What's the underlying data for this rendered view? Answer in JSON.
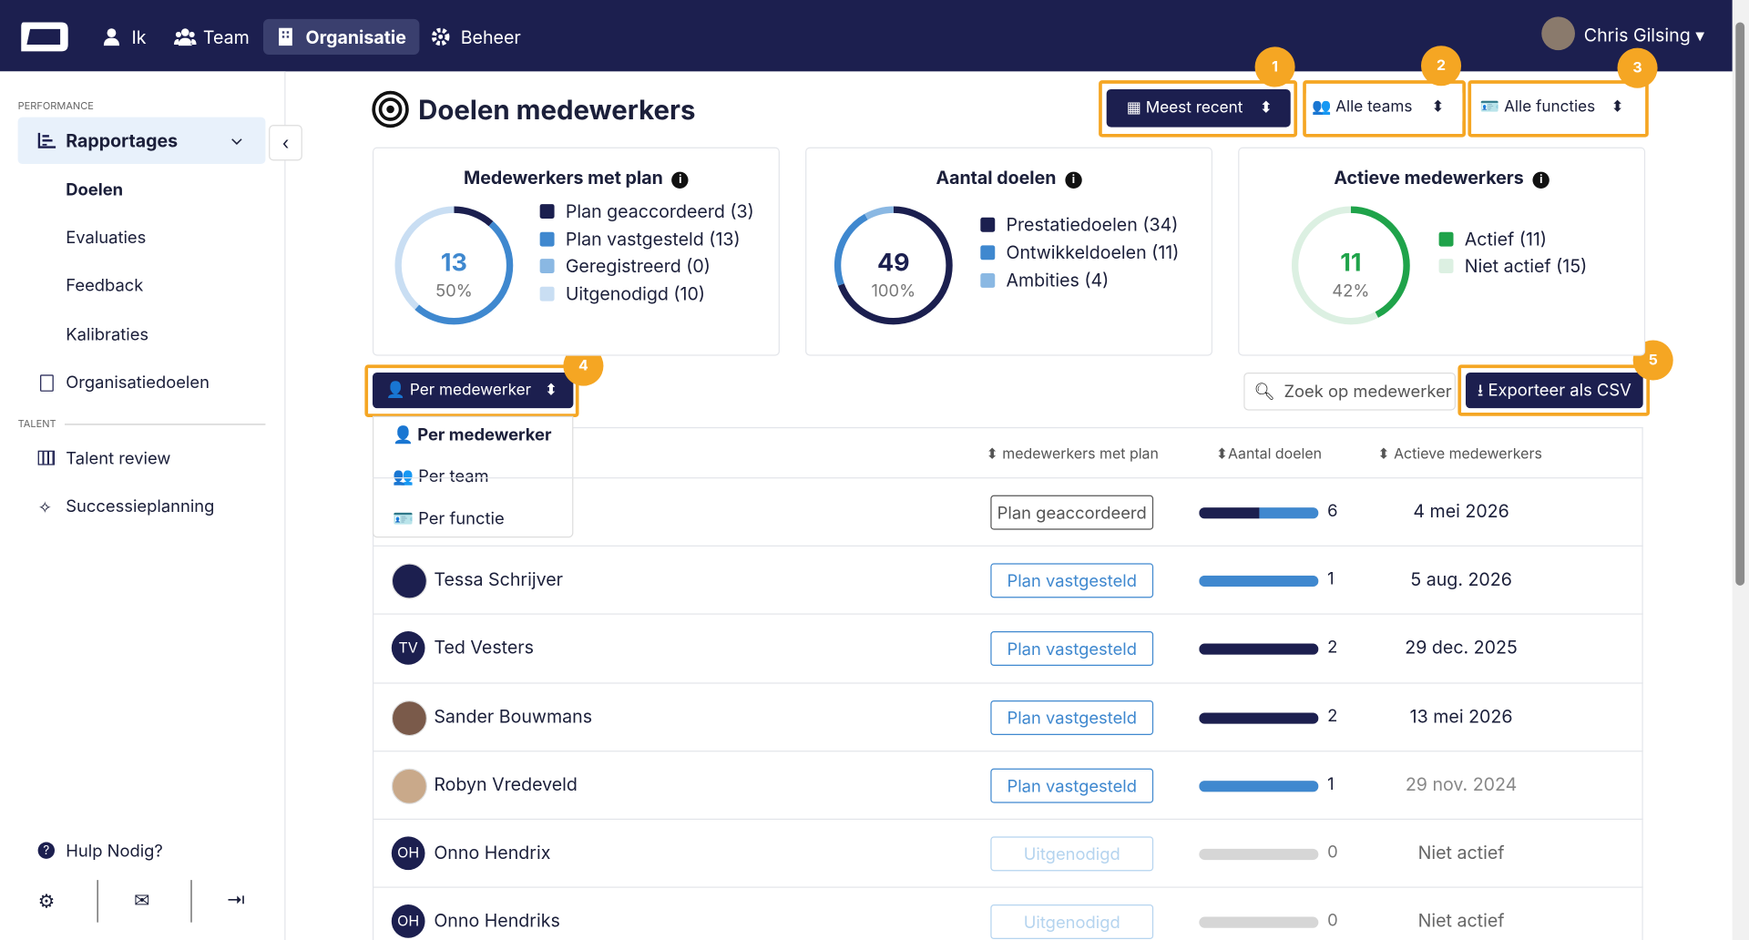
{
  "nav": {
    "items": [
      "Ik",
      "Team",
      "Organisatie",
      "Beheer"
    ],
    "user": "Chris Gilsing"
  },
  "sidebar": {
    "performance_label": "PERFORMANCE",
    "reports": "Rapportages",
    "report_items": [
      "Doelen",
      "Evaluaties",
      "Feedback",
      "Kalibraties"
    ],
    "org_goals": "Organisatiedoelen",
    "talent_label": "TALENT",
    "talent_items": [
      "Talent review",
      "Successieplanning"
    ],
    "help": "Hulp Nodig?"
  },
  "header": {
    "title": "Doelen medewerkers",
    "filters": [
      "Meest recent",
      "Alle teams",
      "Alle functies"
    ]
  },
  "badges": [
    1,
    2,
    3,
    4,
    5
  ],
  "cards": [
    {
      "title": "Medewerkers met plan",
      "value": 13,
      "percent": "50%",
      "legend": [
        {
          "label": "Plan geaccordeerd (3)",
          "value": 3,
          "color": "#1b1f4f"
        },
        {
          "label": "Plan vastgesteld (13)",
          "value": 13,
          "color": "#3f88cf"
        },
        {
          "label": "Geregistreerd (0)",
          "value": 0,
          "color": "#8ab8e3"
        },
        {
          "label": "Uitgenodigd (10)",
          "value": 10,
          "color": "#c9def3"
        }
      ]
    },
    {
      "title": "Aantal doelen",
      "value": 49,
      "percent": "100%",
      "legend": [
        {
          "label": "Prestatiedoelen (34)",
          "value": 34,
          "color": "#1b1f4f"
        },
        {
          "label": "Ontwikkeldoelen (11)",
          "value": 11,
          "color": "#3f88cf"
        },
        {
          "label": "Ambities (4)",
          "value": 4,
          "color": "#8ab8e3"
        }
      ]
    },
    {
      "title": "Actieve medewerkers",
      "value": 11,
      "percent": "42%",
      "legend": [
        {
          "label": "Actief (11)",
          "value": 11,
          "color": "#1fa34a"
        },
        {
          "label": "Niet actief (15)",
          "value": 15,
          "color": "#dcf0e2"
        }
      ]
    }
  ],
  "grouping": {
    "button": "Per medewerker",
    "options": [
      "Per medewerker",
      "Per team",
      "Per functie"
    ]
  },
  "search_placeholder": "Zoek op medewerker",
  "export": "Exporteer als CSV",
  "table": {
    "headers": [
      "medewerkers met plan",
      "Aantal doelen",
      "Actieve medewerkers"
    ],
    "rows": [
      {
        "status": "Plan geaccordeerd",
        "goals": 6,
        "date": "4 mei 2026"
      },
      {
        "name": "Tessa Schrijver",
        "status": "Plan vastgesteld",
        "goals": 1,
        "date": "5 aug. 2026"
      },
      {
        "name": "Ted Vesters",
        "initials": "TV",
        "status": "Plan vastgesteld",
        "goals": 2,
        "date": "29 dec. 2025"
      },
      {
        "name": "Sander Bouwmans",
        "status": "Plan vastgesteld",
        "goals": 2,
        "date": "13 mei 2026"
      },
      {
        "name": "Robyn Vredeveld",
        "status": "Plan vastgesteld",
        "goals": 1,
        "date": "29 nov. 2024"
      },
      {
        "name": "Onno Hendrix",
        "initials": "OH",
        "status": "Uitgenodigd",
        "goals": 0,
        "date": "Niet actief"
      },
      {
        "name": "Onno Hendriks",
        "initials": "OH",
        "status": "Uitgenodigd",
        "goals": 0,
        "date": "Niet actief"
      }
    ]
  }
}
